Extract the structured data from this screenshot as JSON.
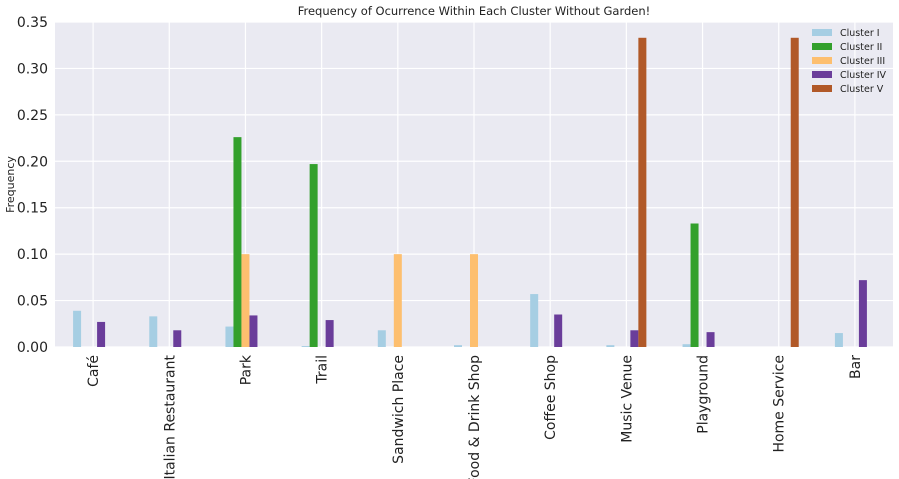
{
  "chart_data": {
    "type": "bar",
    "title": "Frequency of Ocurrence Within Each Cluster Without Garden!",
    "xlabel": "",
    "ylabel": "Frequency",
    "ylim": [
      0,
      0.35
    ],
    "yticks": [
      "0.00",
      "0.05",
      "0.10",
      "0.15",
      "0.20",
      "0.25",
      "0.30",
      "0.35"
    ],
    "grid": true,
    "legend_position": "top-right",
    "categories": [
      "Café",
      "Italian Restaurant",
      "Park",
      "Trail",
      "Sandwich Place",
      "Food & Drink Shop",
      "Coffee Shop",
      "Music Venue",
      "Playground",
      "Home Service",
      "Bar"
    ],
    "series": [
      {
        "name": "Cluster I",
        "color": "#a6cee3",
        "values": [
          0.039,
          0.033,
          0.022,
          0.001,
          0.018,
          0.002,
          0.057,
          0.002,
          0.003,
          0.0,
          0.015
        ]
      },
      {
        "name": "Cluster II",
        "color": "#33a02c",
        "values": [
          0.0,
          0.0,
          0.226,
          0.197,
          0.0,
          0.0,
          0.0,
          0.0,
          0.133,
          0.0,
          0.0
        ]
      },
      {
        "name": "Cluster III",
        "color": "#fdbf6f",
        "values": [
          0.0,
          0.0,
          0.1,
          0.0,
          0.1,
          0.1,
          0.0,
          0.0,
          0.0,
          0.0,
          0.0
        ]
      },
      {
        "name": "Cluster IV",
        "color": "#6a3d9a",
        "values": [
          0.027,
          0.018,
          0.034,
          0.029,
          0.0,
          0.0,
          0.035,
          0.018,
          0.016,
          0.0,
          0.072
        ]
      },
      {
        "name": "Cluster V",
        "color": "#b15928",
        "values": [
          0.0,
          0.0,
          0.0,
          0.0,
          0.0,
          0.0,
          0.0,
          0.333,
          0.0,
          0.333,
          0.0
        ]
      }
    ]
  }
}
